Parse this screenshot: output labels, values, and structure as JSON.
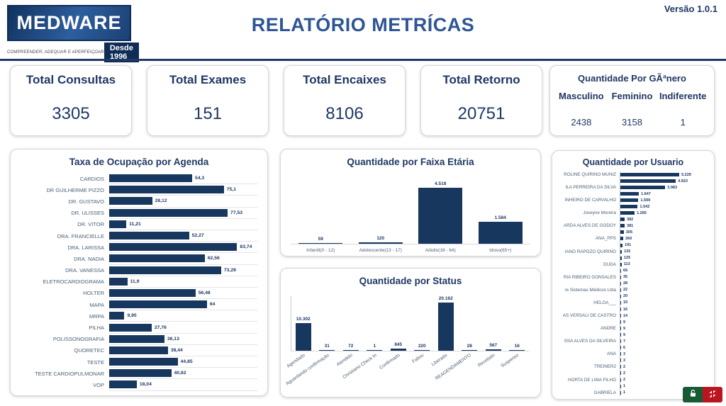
{
  "app": {
    "version_label": "Versão 1.0.1",
    "title": "RELATÓRIO METRÍCAS"
  },
  "logo": {
    "name": "MEDWARE",
    "tagline": "COMPREENDER, ADEQUAR E APERFEIÇOAR",
    "badge": "Desde 1996"
  },
  "kpis": [
    {
      "label": "Total Consultas",
      "value": "3305"
    },
    {
      "label": "Total Exames",
      "value": "151"
    },
    {
      "label": "Total Encaixes",
      "value": "8106"
    },
    {
      "label": "Total Retorno",
      "value": "20751"
    }
  ],
  "gender": {
    "title": "Quantidade Por GÃªnero",
    "columns": [
      {
        "label": "Masculino",
        "value": "2438"
      },
      {
        "label": "Feminino",
        "value": "3158"
      },
      {
        "label": "Indiferente",
        "value": "1"
      }
    ]
  },
  "chart_data": [
    {
      "type": "bar",
      "orientation": "horizontal",
      "title": "Taxa de Ocupação por Agenda",
      "categories": [
        "CARDIOS",
        "DR GUILHERME PIZZO",
        "DR. GUSTAVO",
        "DR. ULISSES",
        "DR. VITOR",
        "DRA. FRANCIELLE",
        "DRA. LARISSA",
        "DRA. NADIA",
        "DRA. VANESSA",
        "ELETROCARDIOGRAMA",
        "HOLTER",
        "MAPA",
        "MRPA",
        "PILHA",
        "POLISSONOGRAFIA",
        "QUORETEC",
        "TESTE",
        "TESTE CARDIOPULMONAR",
        "VOP"
      ],
      "values": [
        54.3,
        75.1,
        28.12,
        77.53,
        11.21,
        52.27,
        83.74,
        62.56,
        73.29,
        11.9,
        56.48,
        64,
        9.95,
        27.76,
        36.13,
        38.44,
        44.85,
        40.62,
        18.04
      ],
      "value_labels": [
        "54,3",
        "75,1",
        "28,12",
        "77,53",
        "11,21",
        "52,27",
        "83,74",
        "62,56",
        "73,29",
        "11,9",
        "56,48",
        "64",
        "9,95",
        "27,76",
        "36,13",
        "38,44",
        "44,85",
        "40,62",
        "18,04"
      ],
      "xlim": [
        0,
        97
      ],
      "grid": "row-lines"
    },
    {
      "type": "bar",
      "orientation": "vertical",
      "title": "Quantidade por Faixa Etária",
      "categories": [
        "Infantil(0 - 12)",
        "Adolescente(13 - 17)",
        "Adulto(18 - 64)",
        "Idoso(65+)"
      ],
      "values": [
        59,
        120,
        4518,
        1584
      ],
      "value_labels": [
        "59",
        "120",
        "4.518",
        "1.584"
      ],
      "ylim": [
        0,
        4518
      ],
      "grid": "baseline-only"
    },
    {
      "type": "bar",
      "orientation": "vertical",
      "title": "Quantidade por Status",
      "categories": [
        "Agendado",
        "Aguardando confirmação",
        "Atendido",
        "Christiano Check In",
        "Confirmado",
        "Faltou",
        "Liberado",
        "REAGENDAMENTO",
        "Recebido",
        "Suspenso"
      ],
      "values": [
        10302,
        31,
        72,
        1,
        845,
        220,
        20162,
        28,
        567,
        16
      ],
      "value_labels": [
        "10.302",
        "31",
        "72",
        "1",
        "845",
        "220",
        "20.162",
        "28",
        "567",
        "16"
      ],
      "ylim": [
        0,
        20162
      ],
      "grid": "baseline-and-left-axis"
    },
    {
      "type": "bar",
      "orientation": "horizontal",
      "title": "Quantidade por Usuario",
      "categories": [
        "ROLINE QUIRINO MUNIZ",
        "",
        "ILA PERREIRA DA SILVA",
        "",
        "INHEIRO DE CARVALHO",
        "",
        "Joseyne Moreira",
        "",
        "ARDA ALVES DE GODOY",
        "",
        "ANA_PPS",
        "",
        "IANO RAPOZO QUIRINO",
        "",
        "DUDA",
        "",
        "RIA RIBEIRO GONSALES",
        "",
        "re Sistemas Médicos Ltda",
        "",
        "HELOA___",
        "",
        "AS VERSALI DE CASTRO",
        "",
        "ANDRE",
        "",
        "SSA ALVES DA SILVEIRA",
        "",
        "ANA",
        "",
        "TREINER2",
        "",
        "HORTA DE LIMA FILHO",
        "",
        "GABRIELA"
      ],
      "values": [
        5229,
        4923,
        3983,
        1647,
        1599,
        1542,
        1265,
        382,
        381,
        305,
        260,
        191,
        132,
        125,
        113,
        66,
        35,
        28,
        22,
        20,
        19,
        16,
        14,
        9,
        9,
        9,
        7,
        6,
        3,
        3,
        2,
        2,
        2,
        1,
        1
      ],
      "value_labels": [
        "5.229",
        "4.923",
        "3.983",
        "1.647",
        "1.599",
        "1.542",
        "1.265",
        "382",
        "381",
        "305",
        "260",
        "191",
        "132",
        "125",
        "113",
        "66",
        "35",
        "28",
        "22",
        "20",
        "19",
        "16",
        "14",
        "9",
        "9",
        "9",
        "7",
        "6",
        "3",
        "3",
        "2",
        "2",
        "2",
        "1",
        "1"
      ],
      "xlim": [
        0,
        7300
      ],
      "grid": "left-axis-only"
    }
  ],
  "colors": {
    "bar": "#17375e",
    "navy_text": "#1f3864",
    "title_blue": "#2e5596",
    "green_button": "#175b33",
    "red_button": "#bb1620"
  },
  "controls": {
    "buttons": [
      {
        "icon": "unlock-icon"
      },
      {
        "icon": "compress-icon"
      }
    ]
  }
}
